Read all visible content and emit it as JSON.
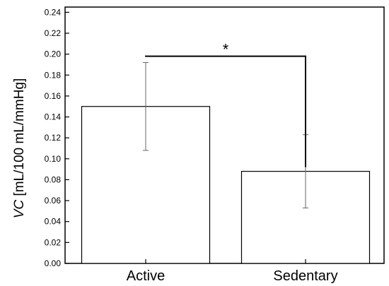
{
  "chart_data": {
    "type": "bar",
    "title": "",
    "xlabel": "",
    "ylabel": {
      "italic": "VC",
      "units": " [mL/100 mL/mmHg]"
    },
    "categories": [
      "Active",
      "Sedentary"
    ],
    "values": [
      0.15,
      0.088
    ],
    "errors": [
      0.042,
      0.035
    ],
    "ylim": [
      0.0,
      0.245
    ],
    "yticks": [
      "0.00",
      "0.02",
      "0.04",
      "0.06",
      "0.08",
      "0.10",
      "0.12",
      "0.14",
      "0.16",
      "0.18",
      "0.20",
      "0.22",
      "0.24"
    ],
    "grid": false,
    "legend": "none",
    "bar_fill": "#ffffff",
    "bar_stroke": "#000000",
    "errorbar_color": "#666666",
    "significance": {
      "label": "*",
      "between": [
        0,
        1
      ],
      "bracket_y": 0.198
    }
  }
}
